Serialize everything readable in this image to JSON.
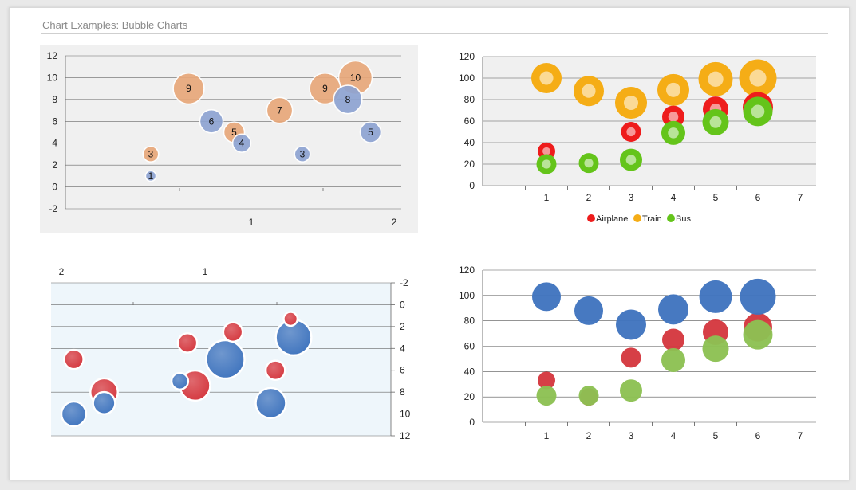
{
  "page": {
    "title": "Chart Examples: Bubble Charts"
  },
  "colors": {
    "orange": "#e8a87a",
    "blue": "#8ea4d2",
    "red": "#d4373e",
    "steel_blue": "#3f74be",
    "green": "#8cc152",
    "airplane": "#ee1c1c",
    "train": "#f5ad16",
    "bus": "#64c41a",
    "chart1_background": "#f0f0f0",
    "chart3_background": "#eef6fb"
  },
  "chart_data": [
    {
      "type": "scatter",
      "variant": "bubble",
      "title": "",
      "xlim": [
        0,
        2
      ],
      "ylim": [
        -2,
        12
      ],
      "xticks": [
        1,
        2
      ],
      "yticks": [
        -2,
        0,
        2,
        4,
        6,
        8,
        10,
        12
      ],
      "grid": "horizontal",
      "legend": "none",
      "data_labels": true,
      "series": [
        {
          "color": "orange",
          "points": [
            {
              "x": 0.6,
              "y": 3,
              "size": 3
            },
            {
              "x": 0.85,
              "y": 9,
              "size": 9
            },
            {
              "x": 1.15,
              "y": 5,
              "size": 5
            },
            {
              "x": 1.45,
              "y": 7,
              "size": 7
            },
            {
              "x": 1.75,
              "y": 9,
              "size": 9
            },
            {
              "x": 1.95,
              "y": 10,
              "size": 10
            }
          ]
        },
        {
          "color": "blue",
          "points": [
            {
              "x": 0.6,
              "y": 1,
              "size": 1
            },
            {
              "x": 1.0,
              "y": 6,
              "size": 6
            },
            {
              "x": 1.2,
              "y": 4,
              "size": 4
            },
            {
              "x": 1.6,
              "y": 3,
              "size": 3
            },
            {
              "x": 1.9,
              "y": 8,
              "size": 8
            },
            {
              "x": 2.05,
              "y": 5,
              "size": 5
            }
          ]
        }
      ]
    },
    {
      "type": "scatter",
      "variant": "bubble-ring",
      "title": "",
      "xlim": [
        0,
        7
      ],
      "ylim": [
        0,
        120
      ],
      "xticks": [
        1,
        2,
        3,
        4,
        5,
        6,
        7
      ],
      "yticks": [
        0,
        20,
        40,
        60,
        80,
        100,
        120
      ],
      "grid": "horizontal",
      "legend": "bottom",
      "series": [
        {
          "name": "Airplane",
          "color": "airplane",
          "points": [
            {
              "x": 1,
              "y": 32,
              "size": 22
            },
            {
              "x": 2,
              "y": 20,
              "size": 22
            },
            {
              "x": 3,
              "y": 50,
              "size": 25
            },
            {
              "x": 4,
              "y": 64,
              "size": 28
            },
            {
              "x": 5,
              "y": 71,
              "size": 32
            },
            {
              "x": 6,
              "y": 73,
              "size": 38
            }
          ]
        },
        {
          "name": "Train",
          "color": "train",
          "points": [
            {
              "x": 1,
              "y": 100,
              "size": 38
            },
            {
              "x": 2,
              "y": 88,
              "size": 38
            },
            {
              "x": 3,
              "y": 77,
              "size": 40
            },
            {
              "x": 4,
              "y": 89,
              "size": 40
            },
            {
              "x": 5,
              "y": 99,
              "size": 43
            },
            {
              "x": 6,
              "y": 100,
              "size": 47
            }
          ]
        },
        {
          "name": "Bus",
          "color": "bus",
          "points": [
            {
              "x": 1,
              "y": 20,
              "size": 25
            },
            {
              "x": 2,
              "y": 21,
              "size": 25
            },
            {
              "x": 3,
              "y": 24,
              "size": 28
            },
            {
              "x": 4,
              "y": 49,
              "size": 30
            },
            {
              "x": 5,
              "y": 59,
              "size": 33
            },
            {
              "x": 6,
              "y": 69,
              "size": 37
            }
          ]
        }
      ]
    },
    {
      "type": "scatter",
      "variant": "bubble-reversed-axes",
      "title": "",
      "xlim": [
        2,
        0
      ],
      "ylim": [
        -2,
        12
      ],
      "xaxis_position": "top",
      "yaxis_position": "right",
      "xticks": [
        2,
        1
      ],
      "yticks": [
        -2,
        0,
        2,
        4,
        6,
        8,
        10,
        12
      ],
      "grid": "horizontal",
      "legend": "none",
      "series": [
        {
          "color": "red",
          "points": [
            {
              "x": 0.7,
              "y": 2.5,
              "size": 3
            },
            {
              "x": 0.95,
              "y": 7.4,
              "size": 7
            },
            {
              "x": 1.75,
              "y": 5,
              "size": 3
            },
            {
              "x": 1.55,
              "y": 8,
              "size": 6
            },
            {
              "x": 1.0,
              "y": 3.5,
              "size": 3
            },
            {
              "x": 0.32,
              "y": 1.3,
              "size": 1
            },
            {
              "x": 0.42,
              "y": 6,
              "size": 3
            }
          ]
        },
        {
          "color": "steel_blue",
          "points": [
            {
              "x": 1.75,
              "y": 10,
              "size": 5
            },
            {
              "x": 1.55,
              "y": 9,
              "size": 4
            },
            {
              "x": 1.05,
              "y": 7,
              "size": 2
            },
            {
              "x": 0.75,
              "y": 5,
              "size": 10
            },
            {
              "x": 0.45,
              "y": 9,
              "size": 7
            },
            {
              "x": 0.3,
              "y": 3,
              "size": 9
            }
          ]
        }
      ]
    },
    {
      "type": "scatter",
      "variant": "bubble",
      "title": "",
      "xlim": [
        0,
        7
      ],
      "ylim": [
        0,
        120
      ],
      "xticks": [
        1,
        2,
        3,
        4,
        5,
        6,
        7
      ],
      "yticks": [
        0,
        20,
        40,
        60,
        80,
        100,
        120
      ],
      "grid": "horizontal",
      "legend": "none",
      "series": [
        {
          "color": "red",
          "points": [
            {
              "x": 1,
              "y": 33,
              "size": 22
            },
            {
              "x": 2,
              "y": 20,
              "size": 22
            },
            {
              "x": 3,
              "y": 51,
              "size": 25
            },
            {
              "x": 4,
              "y": 65,
              "size": 28
            },
            {
              "x": 5,
              "y": 71,
              "size": 32
            },
            {
              "x": 6,
              "y": 75,
              "size": 36
            }
          ]
        },
        {
          "color": "steel_blue",
          "points": [
            {
              "x": 1,
              "y": 99,
              "size": 36
            },
            {
              "x": 2,
              "y": 88,
              "size": 36
            },
            {
              "x": 3,
              "y": 77,
              "size": 38
            },
            {
              "x": 4,
              "y": 89,
              "size": 38
            },
            {
              "x": 5,
              "y": 99,
              "size": 41
            },
            {
              "x": 6,
              "y": 99,
              "size": 45
            }
          ]
        },
        {
          "color": "green",
          "points": [
            {
              "x": 1,
              "y": 21,
              "size": 25
            },
            {
              "x": 2,
              "y": 21,
              "size": 25
            },
            {
              "x": 3,
              "y": 25,
              "size": 28
            },
            {
              "x": 4,
              "y": 49,
              "size": 30
            },
            {
              "x": 5,
              "y": 58,
              "size": 33
            },
            {
              "x": 6,
              "y": 69,
              "size": 37
            }
          ]
        }
      ]
    }
  ]
}
